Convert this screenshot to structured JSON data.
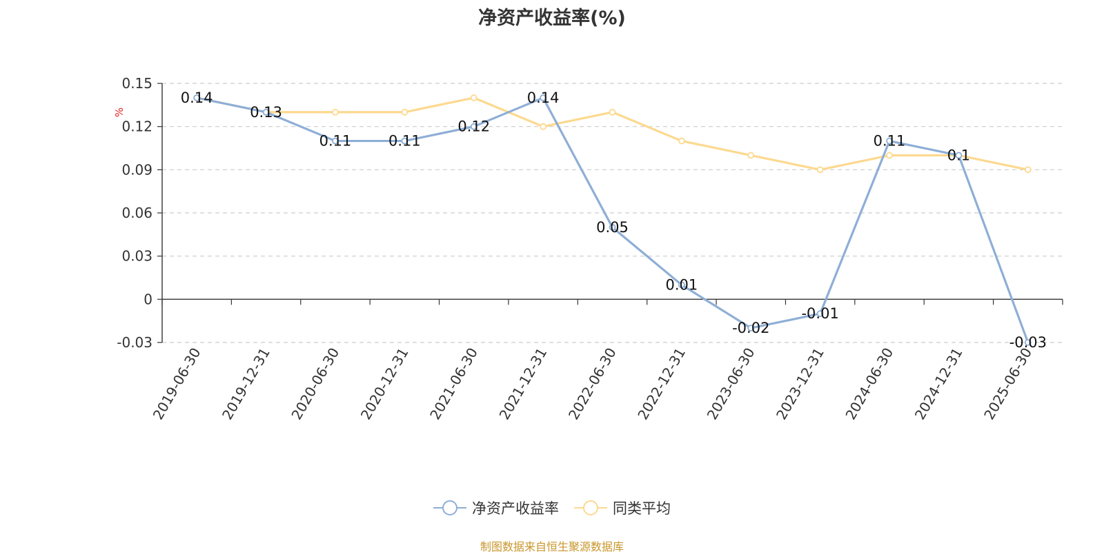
{
  "title": "净资产收益率(%)",
  "source_note": "制图数据来自恒生聚源数据库",
  "chart_data": {
    "type": "line",
    "title": "净资产收益率(%)",
    "ylabel": "%",
    "ylim": [
      -0.03,
      0.15
    ],
    "yticks": [
      -0.03,
      0,
      0.03,
      0.06,
      0.09,
      0.12,
      0.15
    ],
    "ytick_labels": [
      "-0.03",
      "0",
      "0.03",
      "0.06",
      "0.09",
      "0.12",
      "0.15"
    ],
    "grid": true,
    "legend_position": "bottom",
    "categories": [
      "2019-06-30",
      "2019-12-31",
      "2020-06-30",
      "2020-12-31",
      "2021-06-30",
      "2021-12-31",
      "2022-06-30",
      "2022-12-31",
      "2023-06-30",
      "2023-12-31",
      "2024-06-30",
      "2024-12-31",
      "2025-06-30"
    ],
    "series": [
      {
        "name": "净资产收益率",
        "color": "#8eaed6",
        "values": [
          0.14,
          0.13,
          0.11,
          0.11,
          0.12,
          0.14,
          0.05,
          0.01,
          -0.02,
          -0.01,
          0.11,
          0.1,
          -0.03
        ],
        "labels": [
          "0.14",
          "0.13",
          "0.11",
          "0.11",
          "0.12",
          "0.14",
          "0.05",
          "0.01",
          "-0.02",
          "-0.01",
          "0.11",
          "0.1",
          "-0.03"
        ]
      },
      {
        "name": "同类平均",
        "color": "#fcd98f",
        "values": [
          0.14,
          0.13,
          0.13,
          0.13,
          0.14,
          0.12,
          0.13,
          0.11,
          0.1,
          0.09,
          0.1,
          0.1,
          0.09
        ]
      }
    ]
  }
}
